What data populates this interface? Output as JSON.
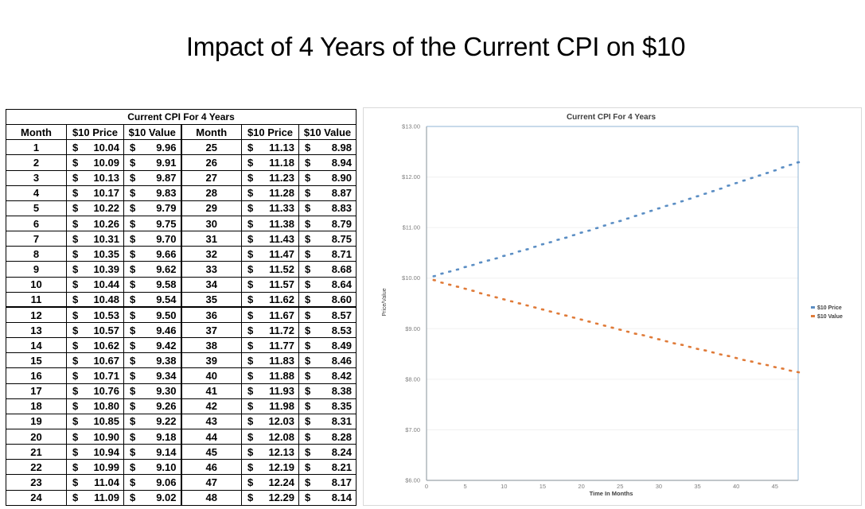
{
  "slide": {
    "title": "Impact of 4 Years of the Current CPI on $10"
  },
  "table": {
    "caption": "Current CPI For 4 Years",
    "headers": [
      "Month",
      "$10 Price",
      "$10 Value",
      "Month",
      "$10 Price",
      "$10 Value"
    ],
    "currency_symbol": "$",
    "rows": [
      {
        "month": 1,
        "price": "10.04",
        "value": "9.96"
      },
      {
        "month": 2,
        "price": "10.09",
        "value": "9.91"
      },
      {
        "month": 3,
        "price": "10.13",
        "value": "9.87"
      },
      {
        "month": 4,
        "price": "10.17",
        "value": "9.83"
      },
      {
        "month": 5,
        "price": "10.22",
        "value": "9.79"
      },
      {
        "month": 6,
        "price": "10.26",
        "value": "9.75"
      },
      {
        "month": 7,
        "price": "10.31",
        "value": "9.70"
      },
      {
        "month": 8,
        "price": "10.35",
        "value": "9.66"
      },
      {
        "month": 9,
        "price": "10.39",
        "value": "9.62"
      },
      {
        "month": 10,
        "price": "10.44",
        "value": "9.58"
      },
      {
        "month": 11,
        "price": "10.48",
        "value": "9.54"
      },
      {
        "month": 12,
        "price": "10.53",
        "value": "9.50"
      },
      {
        "month": 13,
        "price": "10.57",
        "value": "9.46"
      },
      {
        "month": 14,
        "price": "10.62",
        "value": "9.42"
      },
      {
        "month": 15,
        "price": "10.67",
        "value": "9.38"
      },
      {
        "month": 16,
        "price": "10.71",
        "value": "9.34"
      },
      {
        "month": 17,
        "price": "10.76",
        "value": "9.30"
      },
      {
        "month": 18,
        "price": "10.80",
        "value": "9.26"
      },
      {
        "month": 19,
        "price": "10.85",
        "value": "9.22"
      },
      {
        "month": 20,
        "price": "10.90",
        "value": "9.18"
      },
      {
        "month": 21,
        "price": "10.94",
        "value": "9.14"
      },
      {
        "month": 22,
        "price": "10.99",
        "value": "9.10"
      },
      {
        "month": 23,
        "price": "11.04",
        "value": "9.06"
      },
      {
        "month": 24,
        "price": "11.09",
        "value": "9.02"
      },
      {
        "month": 25,
        "price": "11.13",
        "value": "8.98"
      },
      {
        "month": 26,
        "price": "11.18",
        "value": "8.94"
      },
      {
        "month": 27,
        "price": "11.23",
        "value": "8.90"
      },
      {
        "month": 28,
        "price": "11.28",
        "value": "8.87"
      },
      {
        "month": 29,
        "price": "11.33",
        "value": "8.83"
      },
      {
        "month": 30,
        "price": "11.38",
        "value": "8.79"
      },
      {
        "month": 31,
        "price": "11.43",
        "value": "8.75"
      },
      {
        "month": 32,
        "price": "11.47",
        "value": "8.71"
      },
      {
        "month": 33,
        "price": "11.52",
        "value": "8.68"
      },
      {
        "month": 34,
        "price": "11.57",
        "value": "8.64"
      },
      {
        "month": 35,
        "price": "11.62",
        "value": "8.60"
      },
      {
        "month": 36,
        "price": "11.67",
        "value": "8.57"
      },
      {
        "month": 37,
        "price": "11.72",
        "value": "8.53"
      },
      {
        "month": 38,
        "price": "11.77",
        "value": "8.49"
      },
      {
        "month": 39,
        "price": "11.83",
        "value": "8.46"
      },
      {
        "month": 40,
        "price": "11.88",
        "value": "8.42"
      },
      {
        "month": 41,
        "price": "11.93",
        "value": "8.38"
      },
      {
        "month": 42,
        "price": "11.98",
        "value": "8.35"
      },
      {
        "month": 43,
        "price": "12.03",
        "value": "8.31"
      },
      {
        "month": 44,
        "price": "12.08",
        "value": "8.28"
      },
      {
        "month": 45,
        "price": "12.13",
        "value": "8.24"
      },
      {
        "month": 46,
        "price": "12.19",
        "value": "8.21"
      },
      {
        "month": 47,
        "price": "12.24",
        "value": "8.17"
      },
      {
        "month": 48,
        "price": "12.29",
        "value": "8.14"
      }
    ]
  },
  "chart_data": {
    "type": "scatter",
    "title": "Current CPI For 4 Years",
    "xlabel": "Time In Months",
    "ylabel": "Price/Value",
    "xlim": [
      0,
      48
    ],
    "ylim": [
      6,
      13
    ],
    "xticks": [
      0,
      5,
      10,
      15,
      20,
      25,
      30,
      35,
      40,
      45
    ],
    "yticks": [
      6,
      7,
      8,
      9,
      10,
      11,
      12,
      13
    ],
    "ytick_labels": [
      "$6.00",
      "$7.00",
      "$8.00",
      "$9.00",
      "$10.00",
      "$11.00",
      "$12.00",
      "$13.00"
    ],
    "grid": "horizontal",
    "legend_position": "right",
    "x": [
      1,
      2,
      3,
      4,
      5,
      6,
      7,
      8,
      9,
      10,
      11,
      12,
      13,
      14,
      15,
      16,
      17,
      18,
      19,
      20,
      21,
      22,
      23,
      24,
      25,
      26,
      27,
      28,
      29,
      30,
      31,
      32,
      33,
      34,
      35,
      36,
      37,
      38,
      39,
      40,
      41,
      42,
      43,
      44,
      45,
      46,
      47,
      48
    ],
    "series": [
      {
        "name": "$10 Price",
        "color": "#5b8ec4",
        "values": [
          10.04,
          10.09,
          10.13,
          10.17,
          10.22,
          10.26,
          10.31,
          10.35,
          10.39,
          10.44,
          10.48,
          10.53,
          10.57,
          10.62,
          10.67,
          10.71,
          10.76,
          10.8,
          10.85,
          10.9,
          10.94,
          10.99,
          11.04,
          11.09,
          11.13,
          11.18,
          11.23,
          11.28,
          11.33,
          11.38,
          11.43,
          11.47,
          11.52,
          11.57,
          11.62,
          11.67,
          11.72,
          11.77,
          11.83,
          11.88,
          11.93,
          11.98,
          12.03,
          12.08,
          12.13,
          12.19,
          12.24,
          12.29
        ]
      },
      {
        "name": "$10 Value",
        "color": "#e07b39",
        "values": [
          9.96,
          9.91,
          9.87,
          9.83,
          9.79,
          9.75,
          9.7,
          9.66,
          9.62,
          9.58,
          9.54,
          9.5,
          9.46,
          9.42,
          9.38,
          9.34,
          9.3,
          9.26,
          9.22,
          9.18,
          9.14,
          9.1,
          9.06,
          9.02,
          8.98,
          8.94,
          8.9,
          8.87,
          8.83,
          8.79,
          8.75,
          8.71,
          8.68,
          8.64,
          8.6,
          8.57,
          8.53,
          8.49,
          8.46,
          8.42,
          8.38,
          8.35,
          8.31,
          8.28,
          8.24,
          8.21,
          8.17,
          8.14
        ]
      }
    ]
  }
}
